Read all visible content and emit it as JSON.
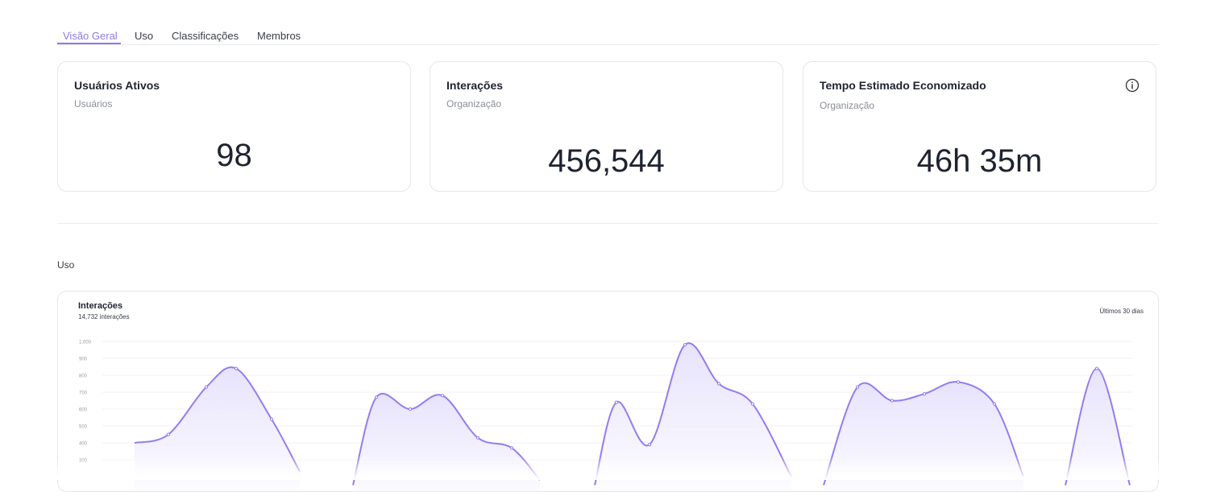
{
  "tabs": [
    {
      "label": "Visão Geral",
      "active": true
    },
    {
      "label": "Uso",
      "active": false
    },
    {
      "label": "Classificações",
      "active": false
    },
    {
      "label": "Membros",
      "active": false
    }
  ],
  "cards": [
    {
      "title": "Usuários Ativos",
      "subtitle": "Usuários",
      "value": "98"
    },
    {
      "title": "Interações",
      "subtitle": "Organização",
      "value": "456,544"
    },
    {
      "title": "Tempo Estimado Economizado",
      "subtitle": "Organização",
      "value": "46h 35m",
      "icon": "info-icon"
    }
  ],
  "section": {
    "label": "Uso"
  },
  "chart_card": {
    "title": "Interações",
    "subtitle": "14,732 interações",
    "range": "Últimos 30 dias"
  },
  "colors": {
    "accent": "#8b7bea",
    "line": "#8e7ff0",
    "area": "#ece8fd",
    "grid": "#f1f1f4"
  },
  "chart_data": {
    "type": "area",
    "title": "Interações",
    "ylim": [
      0,
      1000
    ],
    "yticks": [
      "1,000",
      "900",
      "800",
      "700",
      "600",
      "500",
      "400",
      "300"
    ],
    "grid": true,
    "series": [
      {
        "values": [
          400,
          450,
          730,
          840,
          540,
          230
        ]
      },
      {
        "values": [
          150,
          670,
          600,
          680,
          430,
          370,
          180
        ]
      },
      {
        "values": [
          150,
          640,
          390,
          980,
          750,
          630,
          200
        ]
      },
      {
        "values": [
          150,
          730,
          650,
          690,
          760,
          630,
          200
        ]
      },
      {
        "values": [
          150,
          840,
          150
        ]
      }
    ]
  }
}
